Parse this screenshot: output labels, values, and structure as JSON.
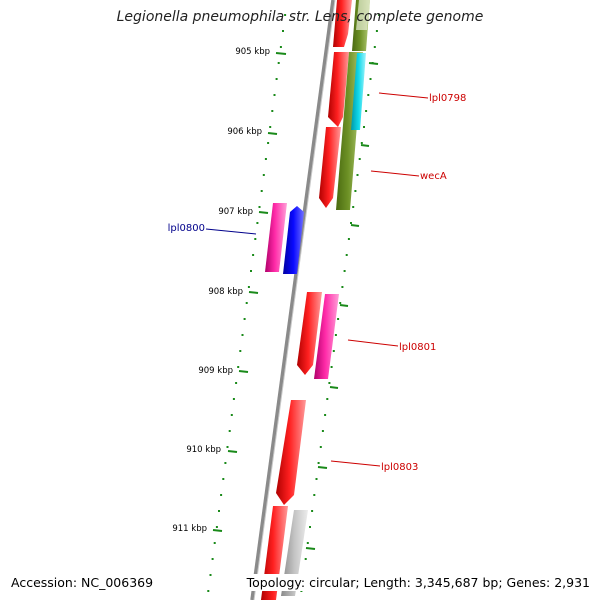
{
  "title": "Legionella pneumophila str. Lens, complete genome",
  "footer": {
    "accession": "Accession: NC_006369",
    "topology": "Topology: circular; Length: 3,345,687 bp; Genes: 2,931"
  },
  "scale_ticks": [
    "905 kbp",
    "906 kbp",
    "907 kbp",
    "908 kbp",
    "909 kbp",
    "910 kbp",
    "911 kbp"
  ],
  "gene_labels": [
    {
      "text": "lpl0798",
      "color": "#cc0000"
    },
    {
      "text": "wecA",
      "color": "#cc0000"
    },
    {
      "text": "lpl0800",
      "color": "#00008b"
    },
    {
      "text": "lpl0801",
      "color": "#cc0000"
    },
    {
      "text": "lpl0803",
      "color": "#cc0000"
    }
  ],
  "colors": {
    "backbone": "#8a8a8a",
    "tick": "#1a8a1a",
    "cds_red": "#ee0000",
    "cds_magenta": "#ee1199",
    "cds_blue": "#0000ee",
    "cds_olive": "#6b8e23",
    "cds_cyan": "#00c8d8",
    "cds_gray": "#b8b8b8"
  }
}
